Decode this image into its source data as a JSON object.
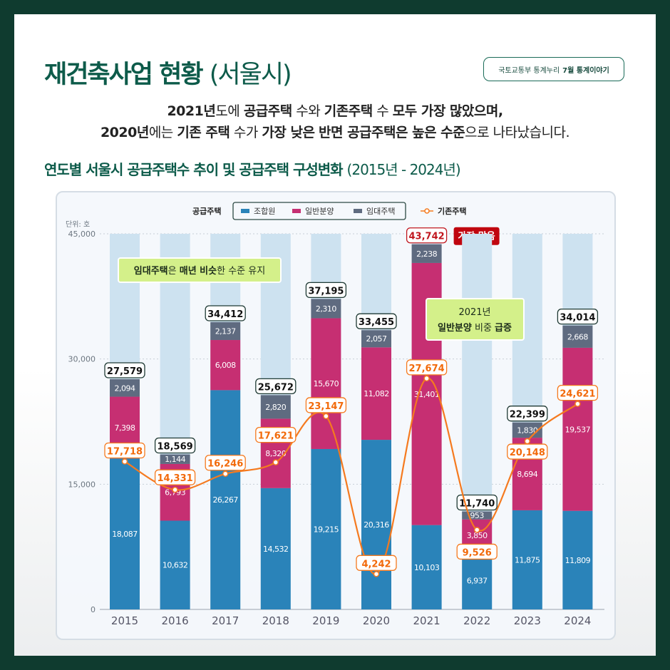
{
  "header": {
    "title_bold": "재건축사업 현황",
    "title_light": "(서울시)",
    "source_prefix": "국토교통부 통계누리",
    "source_bold": "7월 통계이야기"
  },
  "summary": {
    "line1": [
      [
        "2021년",
        true
      ],
      [
        "도에 ",
        false
      ],
      [
        "공급주택",
        true
      ],
      [
        " 수와 ",
        false
      ],
      [
        "기존주택",
        true
      ],
      [
        " 수 ",
        false
      ],
      [
        "모두 가장 많았으며,",
        true
      ]
    ],
    "line2": [
      [
        "2020년",
        true
      ],
      [
        "에는 ",
        false
      ],
      [
        "기존 주택",
        true
      ],
      [
        " 수가 ",
        false
      ],
      [
        "가장 낮은",
        true
      ],
      [
        " ",
        false
      ],
      [
        "반면 공급주택은 높은 수준",
        true
      ],
      [
        "으로 나타났습니다.",
        false
      ]
    ]
  },
  "chart_title": {
    "bold": "연도별 서울시 공급주택수 추이 및 공급주택 구성변화",
    "light": "(2015년 - 2024년)"
  },
  "chart_data": {
    "type": "bar",
    "stacked": true,
    "unit_label": "단위: 호",
    "categories": [
      "2015",
      "2016",
      "2017",
      "2018",
      "2019",
      "2020",
      "2021",
      "2022",
      "2023",
      "2024"
    ],
    "legend_group": "공급주택",
    "series": [
      {
        "name": "조합원",
        "color": "#2a83b9",
        "values": [
          18087,
          10632,
          26267,
          14532,
          19215,
          20316,
          10103,
          6937,
          11875,
          11809
        ]
      },
      {
        "name": "일반분양",
        "color": "#c62f72",
        "values": [
          7398,
          6793,
          6008,
          8320,
          15670,
          11082,
          31401,
          3850,
          8694,
          19537
        ]
      },
      {
        "name": "임대주택",
        "color": "#5f6b80",
        "values": [
          2094,
          1144,
          2137,
          2820,
          2310,
          2057,
          2238,
          953,
          1830,
          2668
        ]
      }
    ],
    "totals": [
      27579,
      18569,
      34412,
      25672,
      37195,
      33455,
      43742,
      11740,
      22399,
      34014
    ],
    "line": {
      "name": "기존주택",
      "color": "#f57a1f",
      "type": "line",
      "values": [
        17718,
        14331,
        16246,
        17621,
        23147,
        4242,
        27674,
        9526,
        20148,
        24621
      ]
    },
    "yticks": [
      0,
      15000,
      30000,
      45000
    ],
    "ytick_labels": [
      "0",
      "15,000",
      "30,000",
      "45,000"
    ],
    "ylim": [
      0,
      45000
    ],
    "grid": true,
    "legend": "top",
    "annotations": {
      "max_badge": "가장 많음",
      "rental_note": [
        [
          "임대주택",
          true
        ],
        [
          "은 ",
          false
        ],
        [
          "매년 비슷",
          true
        ],
        [
          "한 수준 유지",
          false
        ]
      ],
      "note2021_line1": "2021년",
      "note2021_line2": [
        [
          "일반분양",
          true
        ],
        [
          " 비중 ",
          false
        ],
        [
          "급증",
          true
        ]
      ]
    }
  }
}
